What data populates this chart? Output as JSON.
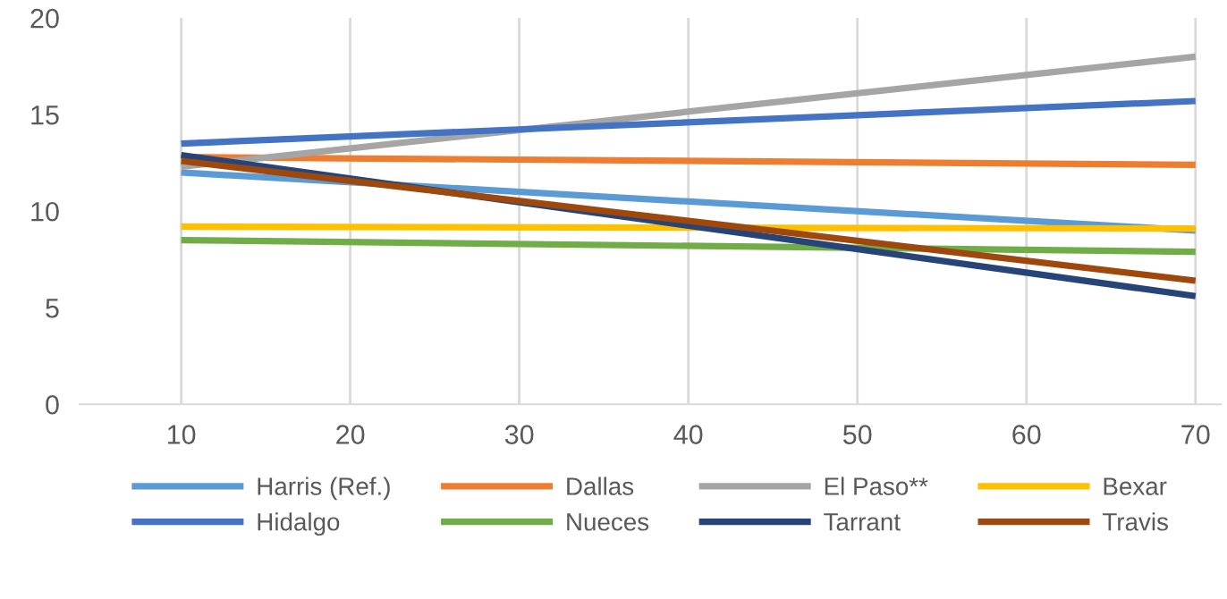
{
  "chart_data": {
    "type": "line",
    "x": [
      10,
      70
    ],
    "series": [
      {
        "name": "Harris (Ref.)",
        "color": "#5b9bd5",
        "values": [
          12.0,
          9.0
        ]
      },
      {
        "name": "Dallas",
        "color": "#ed7d31",
        "values": [
          12.8,
          12.4
        ]
      },
      {
        "name": "El Paso**",
        "color": "#a5a5a5",
        "values": [
          12.3,
          18.0
        ]
      },
      {
        "name": "Bexar",
        "color": "#ffc000",
        "values": [
          9.2,
          9.1
        ]
      },
      {
        "name": "Hidalgo",
        "color": "#4472c4",
        "values": [
          13.5,
          15.7
        ]
      },
      {
        "name": "Nueces",
        "color": "#70ad47",
        "values": [
          8.5,
          7.9
        ]
      },
      {
        "name": "Tarrant",
        "color": "#264478",
        "values": [
          12.9,
          5.6
        ]
      },
      {
        "name": "Travis",
        "color": "#9e480e",
        "values": [
          12.6,
          6.4
        ]
      }
    ],
    "xlim": [
      4,
      71.5
    ],
    "xticks": [
      10,
      20,
      30,
      40,
      50,
      60,
      70
    ],
    "ylim": [
      0,
      20
    ],
    "yticks": [
      0,
      5,
      10,
      15,
      20
    ],
    "grid": "x",
    "legend": "bottom",
    "marker": "none",
    "line_style": "solid"
  }
}
